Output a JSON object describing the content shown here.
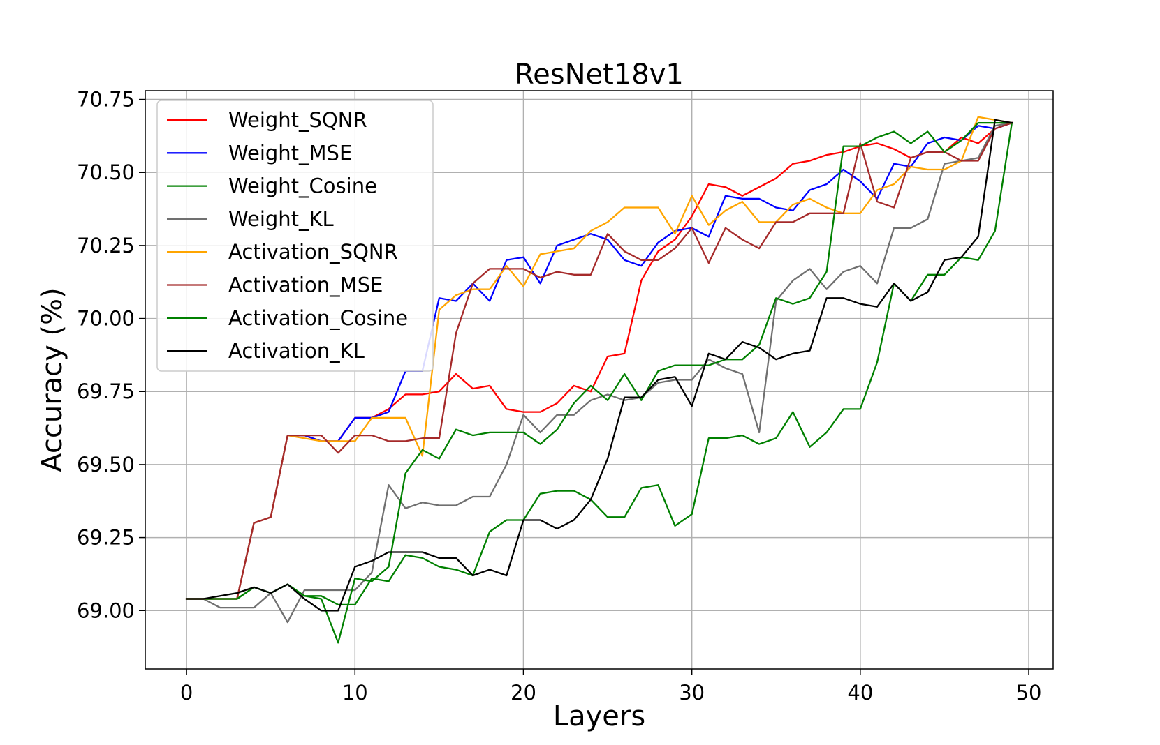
{
  "chart_data": {
    "type": "line",
    "title": "ResNet18v1",
    "xlabel": "Layers",
    "ylabel": "Accuracy (%)",
    "xlim": [
      -2.45,
      51.45
    ],
    "ylim": [
      68.8,
      70.78
    ],
    "xticks": [
      0,
      10,
      20,
      30,
      40,
      50
    ],
    "yticks": [
      69.0,
      69.25,
      69.5,
      69.75,
      70.0,
      70.25,
      70.5,
      70.75
    ],
    "xtick_labels": [
      "0",
      "10",
      "20",
      "30",
      "40",
      "50"
    ],
    "ytick_labels": [
      "69.00",
      "69.25",
      "69.50",
      "69.75",
      "70.00",
      "70.25",
      "70.50",
      "70.75"
    ],
    "grid": true,
    "legend_position": "upper-left",
    "x": [
      0,
      1,
      2,
      3,
      4,
      5,
      6,
      7,
      8,
      9,
      10,
      11,
      12,
      13,
      14,
      15,
      16,
      17,
      18,
      19,
      20,
      21,
      22,
      23,
      24,
      25,
      26,
      27,
      28,
      29,
      30,
      31,
      32,
      33,
      34,
      35,
      36,
      37,
      38,
      39,
      40,
      41,
      42,
      43,
      44,
      45,
      46,
      47,
      48,
      49
    ],
    "series": [
      {
        "name": "Weight_SQNR",
        "color": "#ff0000",
        "values": [
          69.04,
          69.04,
          69.04,
          69.04,
          69.3,
          69.32,
          69.6,
          69.6,
          69.58,
          69.58,
          69.66,
          69.66,
          69.69,
          69.74,
          69.74,
          69.75,
          69.81,
          69.76,
          69.77,
          69.69,
          69.68,
          69.68,
          69.71,
          69.77,
          69.75,
          69.87,
          69.88,
          70.13,
          70.23,
          70.27,
          70.35,
          70.46,
          70.45,
          70.42,
          70.45,
          70.48,
          70.53,
          70.54,
          70.56,
          70.57,
          70.59,
          70.6,
          70.58,
          70.55,
          70.57,
          70.57,
          70.62,
          70.6,
          70.65,
          70.67
        ]
      },
      {
        "name": "Weight_MSE",
        "color": "#0000ff",
        "values": [
          69.04,
          69.04,
          69.04,
          69.04,
          69.3,
          69.32,
          69.6,
          69.6,
          69.58,
          69.58,
          69.66,
          69.66,
          69.68,
          69.82,
          69.82,
          70.07,
          70.06,
          70.12,
          70.06,
          70.2,
          70.21,
          70.12,
          70.25,
          70.27,
          70.29,
          70.27,
          70.2,
          70.18,
          70.26,
          70.3,
          70.31,
          70.28,
          70.42,
          70.41,
          70.41,
          70.38,
          70.37,
          70.44,
          70.46,
          70.51,
          70.47,
          70.41,
          70.53,
          70.52,
          70.6,
          70.62,
          70.61,
          70.66,
          70.65,
          70.67
        ]
      },
      {
        "name": "Weight_Cosine",
        "color": "#008000",
        "values": [
          69.04,
          69.04,
          69.04,
          69.04,
          69.08,
          69.06,
          69.09,
          69.05,
          69.05,
          69.02,
          69.02,
          69.11,
          69.1,
          69.19,
          69.18,
          69.15,
          69.14,
          69.12,
          69.27,
          69.31,
          69.31,
          69.4,
          69.41,
          69.41,
          69.38,
          69.32,
          69.32,
          69.42,
          69.43,
          69.29,
          69.33,
          69.59,
          69.59,
          69.6,
          69.57,
          69.59,
          69.68,
          69.56,
          69.61,
          69.69,
          69.69,
          69.85,
          70.12,
          70.06,
          70.15,
          70.15,
          70.21,
          70.2,
          70.3,
          70.67
        ]
      },
      {
        "name": "Weight_KL",
        "color": "#707070",
        "values": [
          69.04,
          69.04,
          69.01,
          69.01,
          69.01,
          69.06,
          68.96,
          69.07,
          69.07,
          69.07,
          69.07,
          69.13,
          69.43,
          69.35,
          69.37,
          69.36,
          69.36,
          69.39,
          69.39,
          69.5,
          69.67,
          69.61,
          69.67,
          69.67,
          69.72,
          69.74,
          69.72,
          69.73,
          69.78,
          69.79,
          69.79,
          69.86,
          69.83,
          69.81,
          69.61,
          70.06,
          70.13,
          70.17,
          70.1,
          70.16,
          70.18,
          70.12,
          70.31,
          70.31,
          70.34,
          70.53,
          70.54,
          70.55,
          70.66,
          70.67
        ]
      },
      {
        "name": "Activation_SQNR",
        "color": "#ffa500",
        "values": [
          69.04,
          69.04,
          69.04,
          69.04,
          69.3,
          69.32,
          69.6,
          69.59,
          69.58,
          69.58,
          69.58,
          69.66,
          69.66,
          69.66,
          69.53,
          70.03,
          70.08,
          70.1,
          70.1,
          70.18,
          70.11,
          70.22,
          70.23,
          70.24,
          70.3,
          70.33,
          70.38,
          70.38,
          70.38,
          70.29,
          70.42,
          70.32,
          70.37,
          70.4,
          70.33,
          70.33,
          70.39,
          70.41,
          70.38,
          70.36,
          70.36,
          70.44,
          70.46,
          70.52,
          70.51,
          70.51,
          70.54,
          70.69,
          70.68,
          70.67
        ]
      },
      {
        "name": "Activation_MSE",
        "color": "#a52a2a",
        "values": [
          69.04,
          69.04,
          69.04,
          69.04,
          69.3,
          69.32,
          69.6,
          69.6,
          69.6,
          69.54,
          69.6,
          69.6,
          69.58,
          69.58,
          69.59,
          69.59,
          69.95,
          70.12,
          70.17,
          70.17,
          70.17,
          70.14,
          70.16,
          70.15,
          70.15,
          70.29,
          70.23,
          70.2,
          70.2,
          70.24,
          70.31,
          70.19,
          70.31,
          70.27,
          70.24,
          70.33,
          70.33,
          70.36,
          70.36,
          70.36,
          70.6,
          70.4,
          70.38,
          70.55,
          70.57,
          70.57,
          70.54,
          70.54,
          70.65,
          70.67
        ]
      },
      {
        "name": "Activation_Cosine",
        "color": "#008000",
        "values": [
          69.04,
          69.04,
          69.04,
          69.04,
          69.08,
          69.06,
          69.09,
          69.05,
          69.04,
          68.89,
          69.11,
          69.1,
          69.15,
          69.47,
          69.55,
          69.52,
          69.62,
          69.6,
          69.61,
          69.61,
          69.61,
          69.57,
          69.62,
          69.71,
          69.77,
          69.72,
          69.81,
          69.72,
          69.82,
          69.84,
          69.84,
          69.84,
          69.86,
          69.86,
          69.91,
          70.07,
          70.05,
          70.07,
          70.16,
          70.59,
          70.59,
          70.62,
          70.64,
          70.6,
          70.64,
          70.57,
          70.61,
          70.67,
          70.67,
          70.67
        ]
      },
      {
        "name": "Activation_KL",
        "color": "#000000",
        "values": [
          69.04,
          69.04,
          69.05,
          69.06,
          69.08,
          69.06,
          69.09,
          69.04,
          69.0,
          69.0,
          69.15,
          69.17,
          69.2,
          69.2,
          69.2,
          69.18,
          69.18,
          69.12,
          69.14,
          69.12,
          69.31,
          69.31,
          69.28,
          69.31,
          69.38,
          69.52,
          69.73,
          69.73,
          69.79,
          69.8,
          69.7,
          69.88,
          69.86,
          69.92,
          69.9,
          69.86,
          69.88,
          69.89,
          70.07,
          70.07,
          70.05,
          70.04,
          70.12,
          70.06,
          70.09,
          70.2,
          70.21,
          70.28,
          70.68,
          70.67
        ]
      }
    ]
  }
}
